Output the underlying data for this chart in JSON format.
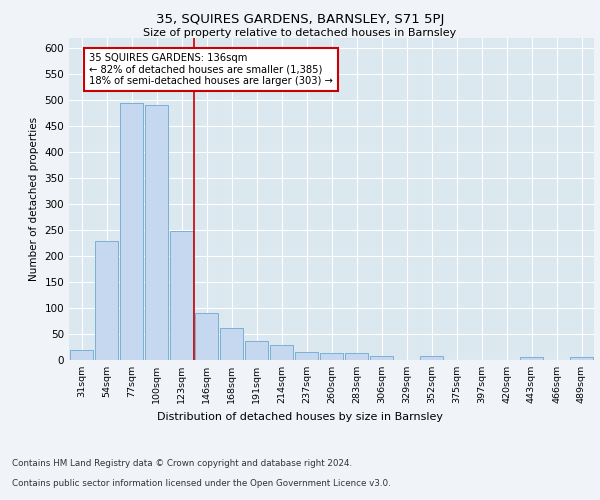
{
  "title": "35, SQUIRES GARDENS, BARNSLEY, S71 5PJ",
  "subtitle": "Size of property relative to detached houses in Barnsley",
  "xlabel": "Distribution of detached houses by size in Barnsley",
  "ylabel": "Number of detached properties",
  "bar_labels": [
    "31sqm",
    "54sqm",
    "77sqm",
    "100sqm",
    "123sqm",
    "146sqm",
    "168sqm",
    "191sqm",
    "214sqm",
    "237sqm",
    "260sqm",
    "283sqm",
    "306sqm",
    "329sqm",
    "352sqm",
    "375sqm",
    "397sqm",
    "420sqm",
    "443sqm",
    "466sqm",
    "489sqm"
  ],
  "bar_values": [
    20,
    228,
    495,
    490,
    248,
    90,
    62,
    37,
    28,
    15,
    13,
    13,
    8,
    0,
    7,
    0,
    0,
    0,
    5,
    0,
    5
  ],
  "bar_color": "#c5d8ef",
  "bar_edge_color": "#7aafd4",
  "vline_color": "#cc0000",
  "annotation_text": "35 SQUIRES GARDENS: 136sqm\n← 82% of detached houses are smaller (1,385)\n18% of semi-detached houses are larger (303) →",
  "annotation_box_color": "#cc0000",
  "ylim": [
    0,
    620
  ],
  "yticks": [
    0,
    50,
    100,
    150,
    200,
    250,
    300,
    350,
    400,
    450,
    500,
    550,
    600
  ],
  "footer_line1": "Contains HM Land Registry data © Crown copyright and database right 2024.",
  "footer_line2": "Contains public sector information licensed under the Open Government Licence v3.0.",
  "fig_bg_color": "#f0f4f8",
  "plot_bg_color": "#dce8f0"
}
